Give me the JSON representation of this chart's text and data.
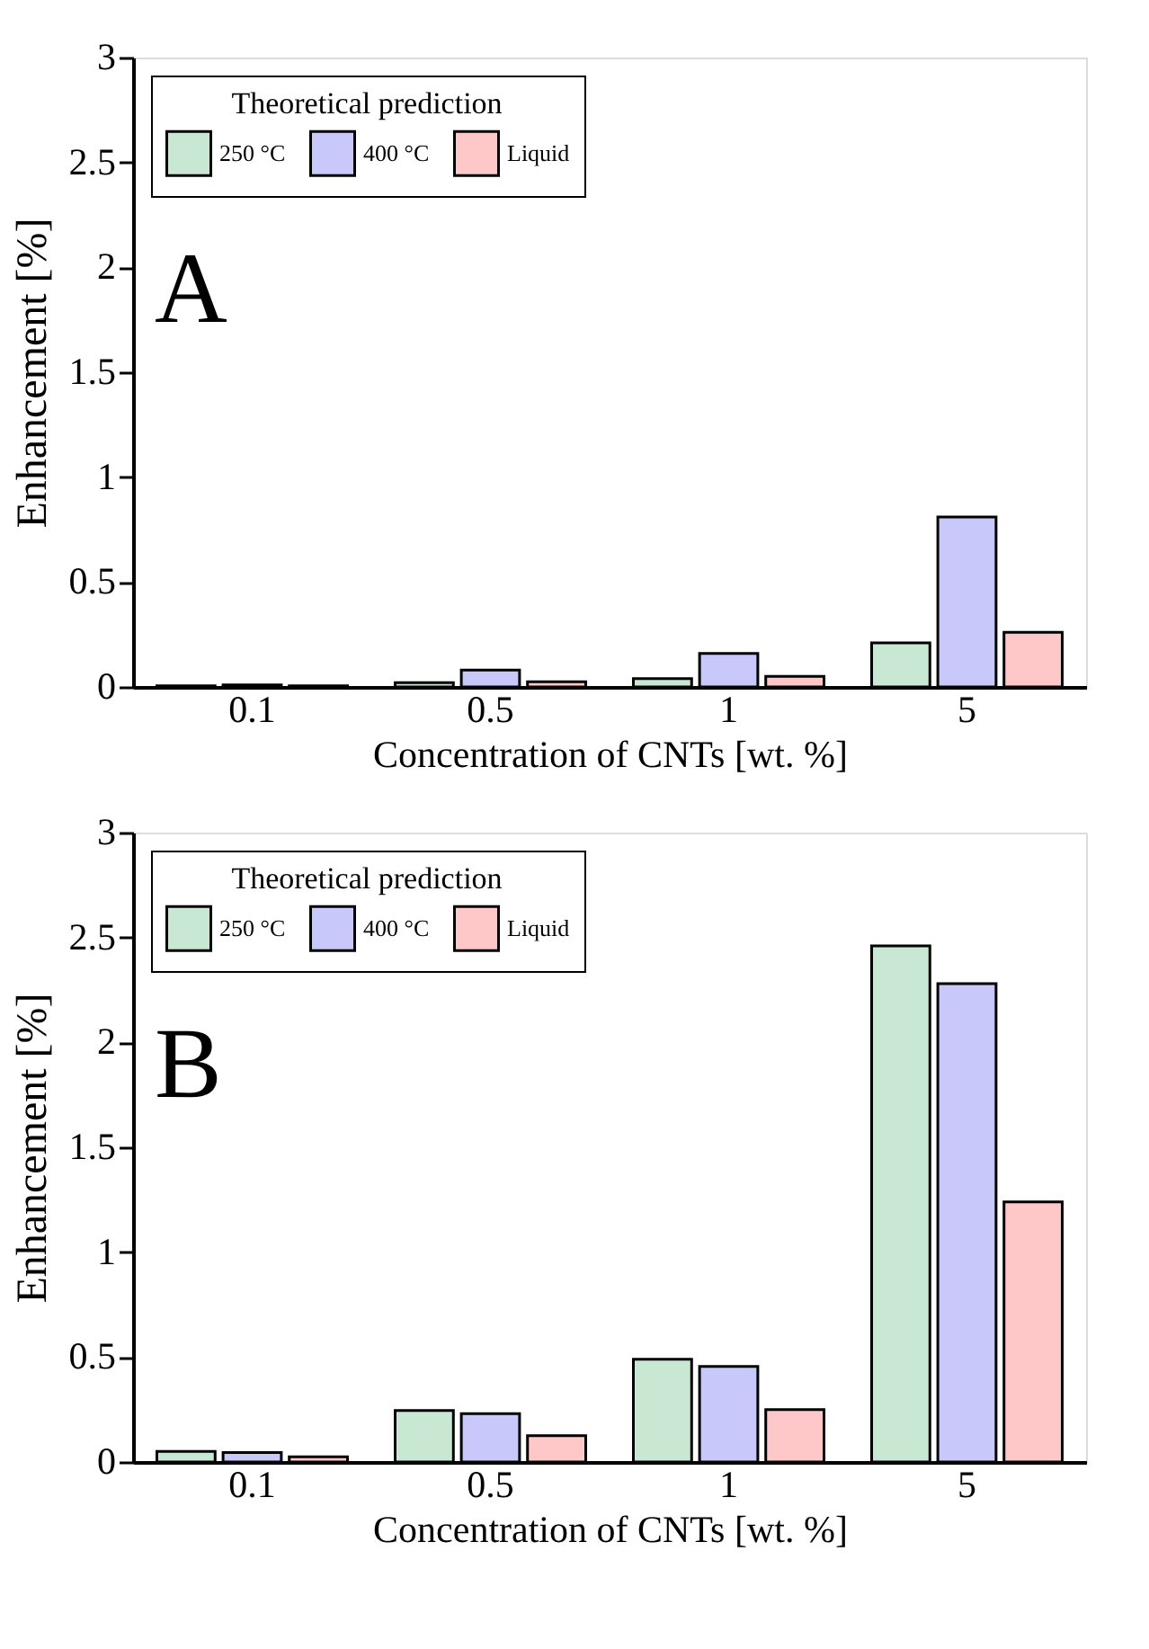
{
  "chart_data": [
    {
      "type": "bar",
      "categories": [
        "0.1",
        "0.5",
        "1",
        "5"
      ],
      "xlabel": "Concentration of CNTs [wt. %]",
      "ylabel": "Enhancement [%]",
      "legend_title": "Theoretical prediction",
      "legend": "top left",
      "ylim": [
        0,
        3
      ],
      "yticks": [
        0,
        0.5,
        1,
        1.5,
        2,
        2.5,
        3
      ],
      "grid": false,
      "annotations": [
        "A"
      ],
      "series": [
        {
          "name": "250 °C",
          "color": "#c8e8d4",
          "values": [
            0.005,
            0.02,
            0.04,
            0.21
          ]
        },
        {
          "name": "400 °C",
          "color": "#c8c8fa",
          "values": [
            0.01,
            0.08,
            0.16,
            0.81
          ]
        },
        {
          "name": "Liquid",
          "color": "#ffc8c8",
          "values": [
            0.005,
            0.025,
            0.05,
            0.26
          ]
        }
      ]
    },
    {
      "type": "bar",
      "categories": [
        "0.1",
        "0.5",
        "1",
        "5"
      ],
      "xlabel": "Concentration of CNTs [wt. %]",
      "ylabel": "Enhancement [%]",
      "legend_title": "Theoretical prediction",
      "legend": "top left",
      "ylim": [
        0,
        3
      ],
      "yticks": [
        0,
        0.5,
        1,
        1.5,
        2,
        2.5,
        3
      ],
      "grid": false,
      "annotations": [
        "B"
      ],
      "series": [
        {
          "name": "250 °C",
          "color": "#c8e8d4",
          "values": [
            0.05,
            0.245,
            0.49,
            2.46
          ]
        },
        {
          "name": "400 °C",
          "color": "#c8c8fa",
          "values": [
            0.045,
            0.23,
            0.455,
            2.28
          ]
        },
        {
          "name": "Liquid",
          "color": "#ffc8c8",
          "values": [
            0.025,
            0.125,
            0.25,
            1.24
          ]
        }
      ]
    }
  ]
}
